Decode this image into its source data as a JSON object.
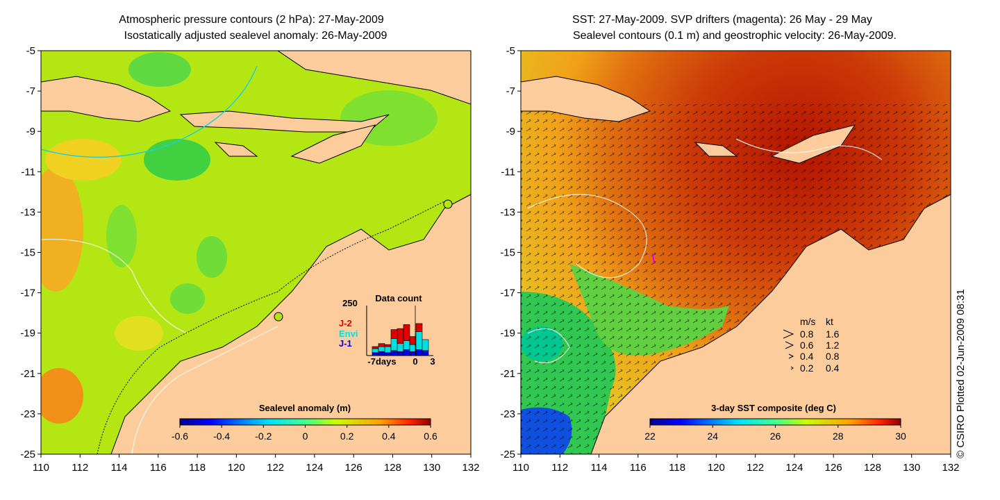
{
  "left_panel": {
    "title_line1": "Atmospheric pressure contours (2 hPa): 27-May-2009",
    "title_line2": "Isostatically adjusted sealevel anomaly: 26-May-2009",
    "x_ticks": [
      "110",
      "112",
      "114",
      "116",
      "118",
      "120",
      "122",
      "124",
      "126",
      "128",
      "130",
      "132"
    ],
    "y_ticks": [
      "-5",
      "-7",
      "-9",
      "-11",
      "-13",
      "-15",
      "-17",
      "-19",
      "-21",
      "-23",
      "-25"
    ],
    "colorbar": {
      "title": "Sealevel anomaly (m)",
      "ticks": [
        "-0.6",
        "-0.4",
        "-0.2",
        "0",
        "0.2",
        "0.4",
        "0.6"
      ],
      "range": [
        -0.6,
        0.6
      ]
    },
    "inset": {
      "title": "Data count",
      "ymax_label": "250",
      "x_start_label": "-7days",
      "x_mid_label": "0",
      "x_end_label": "3",
      "legend": [
        {
          "name": "J-2",
          "color": "#e00000"
        },
        {
          "name": "Envi",
          "color": "#00e0e0"
        },
        {
          "name": "J-1",
          "color": "#0000e0"
        }
      ],
      "bars": [
        {
          "j1": 15,
          "envi": 20,
          "j2": 10
        },
        {
          "j1": 20,
          "envi": 25,
          "j2": 15
        },
        {
          "j1": 15,
          "envi": 30,
          "j2": 10
        },
        {
          "j1": 25,
          "envi": 60,
          "j2": 45
        },
        {
          "j1": 20,
          "envi": 40,
          "j2": 75
        },
        {
          "j1": 30,
          "envi": 45,
          "j2": 80
        },
        {
          "j1": 20,
          "envi": 35,
          "j2": 40
        },
        {
          "j1": 30,
          "envi": 90,
          "j2": 40
        },
        {
          "j1": 25,
          "envi": 55,
          "j2": 0
        }
      ],
      "ymax": 250
    }
  },
  "right_panel": {
    "title_line1": "SST: 27-May-2009. SVP drifters (magenta): 26 May - 29 May",
    "title_line2": "Sealevel contours (0.1 m) and geostrophic velocity: 26-May-2009.",
    "x_ticks": [
      "110",
      "112",
      "114",
      "116",
      "118",
      "120",
      "122",
      "124",
      "126",
      "128",
      "130",
      "132"
    ],
    "y_ticks": [
      "-5",
      "-7",
      "-9",
      "-11",
      "-13",
      "-15",
      "-17",
      "-19",
      "-21",
      "-23",
      "-25"
    ],
    "colorbar": {
      "title": "3-day SST composite (deg C)",
      "ticks": [
        "22",
        "24",
        "26",
        "28",
        "30"
      ],
      "range": [
        22,
        30
      ]
    },
    "speed_legend": {
      "header_ms": "m/s",
      "header_kt": "kt",
      "rows": [
        {
          "ms": "0.8",
          "kt": "1.6"
        },
        {
          "ms": "0.6",
          "kt": "1.2"
        },
        {
          "ms": "0.4",
          "kt": "0.8"
        },
        {
          "ms": "0.2",
          "kt": "0.4"
        }
      ]
    }
  },
  "credit": "© CSIRO Plotted 02-Jun-2009 08:31",
  "colors": {
    "land": "#fccc9c",
    "sla_ocean": "#b4e614",
    "sst_ocean": "#d23c0a"
  }
}
